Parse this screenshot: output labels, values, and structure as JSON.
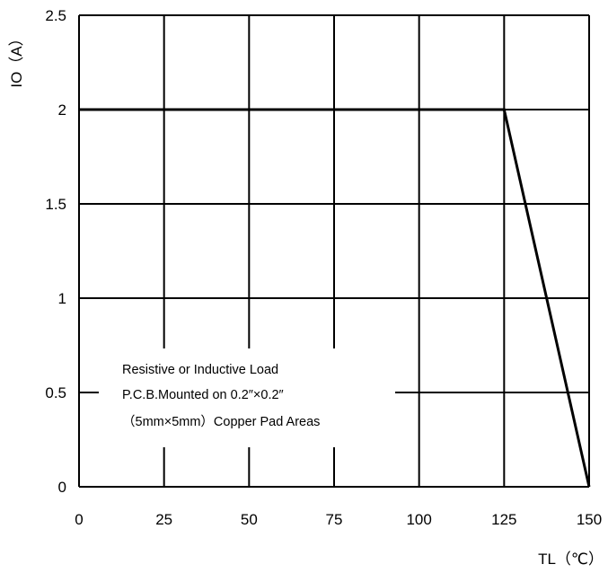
{
  "chart_data": {
    "type": "line",
    "title": "",
    "xlabel": "TL（℃）",
    "ylabel": "IO（A）",
    "xlim": [
      0,
      150
    ],
    "ylim": [
      0,
      2.5
    ],
    "x_ticks": [
      0,
      25,
      50,
      75,
      100,
      125,
      150
    ],
    "x_tick_labels": [
      "0",
      "25",
      "50",
      "75",
      "100",
      "125",
      "150"
    ],
    "y_ticks": [
      0,
      0.5,
      1,
      1.5,
      2,
      2.5
    ],
    "y_tick_labels": [
      "0",
      "0.5",
      "1",
      "1.5",
      "2",
      "2.5"
    ],
    "grid": true,
    "legend": "none",
    "series": [
      {
        "x": [
          0,
          125,
          150
        ],
        "y": [
          2,
          2,
          0
        ]
      }
    ],
    "annotations": [
      "Resistive or Inductive Load",
      "P.C.B.Mounted on 0.2″×0.2″",
      "（5mm×5mm）Copper Pad Areas"
    ]
  }
}
